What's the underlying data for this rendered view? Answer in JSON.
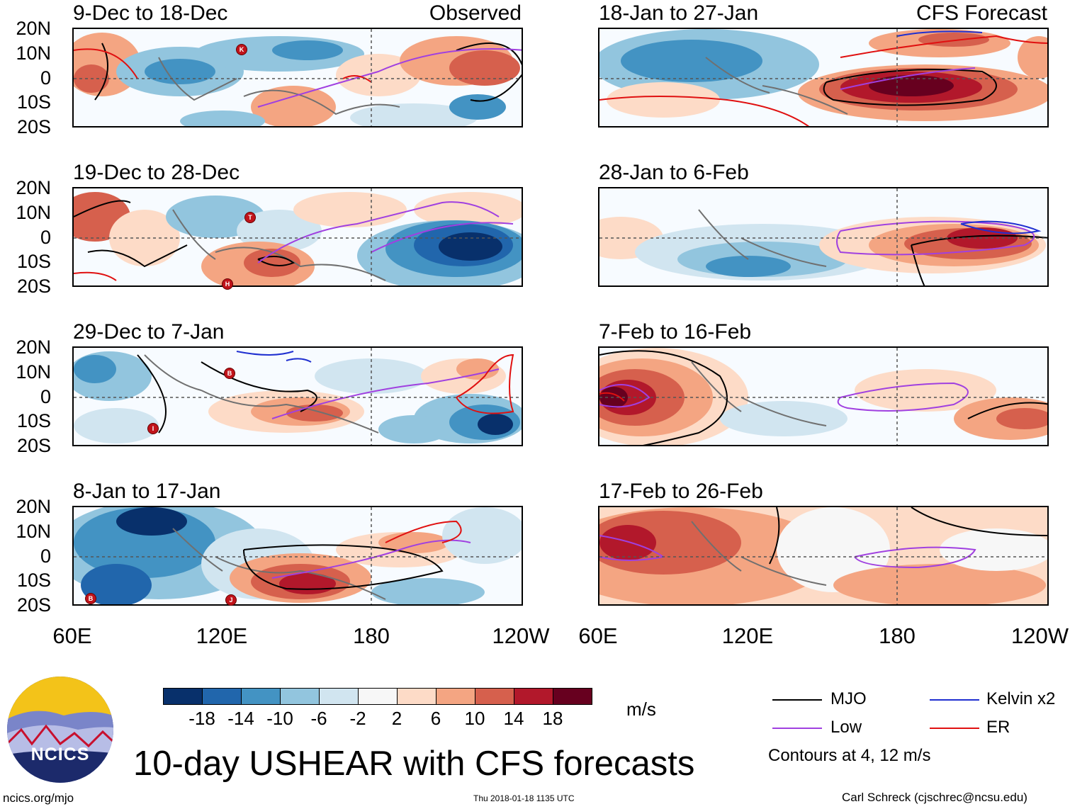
{
  "figure_title": "10-day USHEAR with CFS forecasts",
  "units": "m/s",
  "footer": {
    "url": "ncics.org/mjo",
    "timestamp": "Thu 2018-01-18 1135 UTC",
    "author": "Carl Schreck (cjschrec@ncsu.edu)"
  },
  "logo": {
    "text": "NCICS"
  },
  "axes": {
    "lat_labels": [
      "20N",
      "10N",
      "0",
      "10S",
      "20S"
    ],
    "lon_labels": [
      "60E",
      "120E",
      "180",
      "120W"
    ]
  },
  "columns": {
    "left_tag": "Observed",
    "right_tag": "CFS Forecast"
  },
  "panels_left": [
    {
      "title": "9-Dec to 18-Dec"
    },
    {
      "title": "19-Dec to 28-Dec"
    },
    {
      "title": "29-Dec to 7-Jan"
    },
    {
      "title": "8-Jan to 17-Jan"
    }
  ],
  "panels_right": [
    {
      "title": "18-Jan to 27-Jan"
    },
    {
      "title": "28-Jan to 6-Feb"
    },
    {
      "title": "7-Feb to 16-Feb"
    },
    {
      "title": "17-Feb to 26-Feb"
    }
  ],
  "colorbar": {
    "colors": [
      "#08306b",
      "#2166ac",
      "#4393c3",
      "#92c5de",
      "#d1e5f0",
      "#f7f7f7",
      "#fddbc7",
      "#f4a582",
      "#d6604d",
      "#b2182b",
      "#67001f"
    ],
    "labels": [
      "-18",
      "-14",
      "-10",
      "-6",
      "-2",
      "2",
      "6",
      "10",
      "14",
      "18"
    ]
  },
  "legend": {
    "items": [
      {
        "label": "MJO",
        "color": "#000000"
      },
      {
        "label": "Kelvin x2",
        "color": "#1f2fd0"
      },
      {
        "label": "Low",
        "color": "#a040e0"
      },
      {
        "label": "ER",
        "color": "#e01010"
      }
    ],
    "note": "Contours at 4, 12 m/s"
  },
  "storm_markers": [
    "K",
    "T",
    "H",
    "B",
    "I",
    "B",
    "J"
  ],
  "colors": {
    "neg_strong": "#08306b",
    "neg": "#4393c3",
    "neg_weak": "#d1e5f0",
    "pos_weak": "#fddbc7",
    "pos": "#d6604d",
    "pos_strong": "#67001f",
    "coast": "#707070",
    "mjo": "#000000",
    "kelvin": "#1f2fd0",
    "low": "#a040e0",
    "er": "#e01010"
  }
}
